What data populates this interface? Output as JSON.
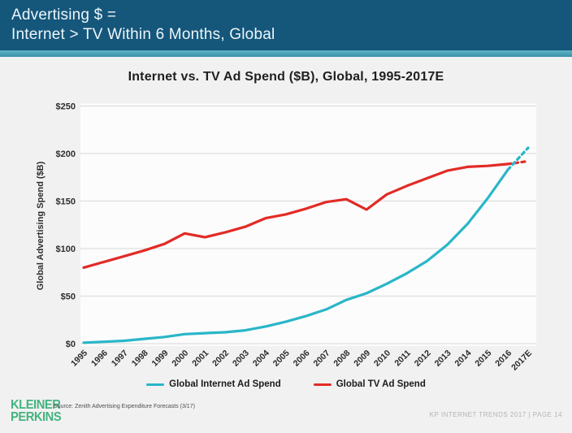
{
  "header": {
    "line1": "Advertising $ =",
    "line2": "Internet > TV Within 6 Months, Global"
  },
  "chart_data": {
    "type": "line",
    "title": "Internet vs. TV Ad Spend ($B), Global, 1995-2017E",
    "xlabel": "",
    "ylabel": "Global Advertising Spend ($B)",
    "ylim": [
      0,
      250
    ],
    "yticks": [
      0,
      50,
      100,
      150,
      200,
      250
    ],
    "ytick_prefix": "$",
    "grid": true,
    "legend_position": "bottom",
    "categories": [
      "1995",
      "1996",
      "1997",
      "1998",
      "1999",
      "2000",
      "2001",
      "2002",
      "2003",
      "2004",
      "2005",
      "2006",
      "2007",
      "2008",
      "2009",
      "2010",
      "2011",
      "2012",
      "2013",
      "2014",
      "2015",
      "2016",
      "2017E"
    ],
    "projection_start_index": 21,
    "series": [
      {
        "name": "Global Internet Ad Spend",
        "color": "#29B6C8",
        "values": [
          1,
          2,
          3,
          5,
          7,
          10,
          11,
          12,
          14,
          18,
          23,
          29,
          36,
          46,
          53,
          63,
          74,
          87,
          104,
          126,
          153,
          183,
          206
        ]
      },
      {
        "name": "Global TV Ad Spend",
        "color": "#E22B26",
        "values": [
          80,
          86,
          92,
          98,
          105,
          116,
          112,
          117,
          123,
          132,
          136,
          142,
          149,
          152,
          141,
          157,
          166,
          174,
          182,
          186,
          187,
          189,
          192
        ]
      }
    ]
  },
  "footer": {
    "logo_line1": "KLEINER",
    "logo_line2": "PERKINS",
    "source": "Source: Zenith Advertising Expenditure Forecasts (3/17)",
    "right_text": "KP INTERNET TRENDS 2017   |   PAGE 14"
  },
  "colors": {
    "header_bg": "#15567B",
    "header_strip": "#3A92A9",
    "slide_bg": "#F2F1F2",
    "plot_bg": "#FCFCFD",
    "gridline": "#DEDEDE",
    "title_text": "#1F1F1F",
    "header_text": "#EDF6FA",
    "internet_line": "#29B6C8",
    "tv_line": "#E22B26",
    "logo_green": "#42B47E",
    "page_ref_gray": "#B4B3B4"
  }
}
